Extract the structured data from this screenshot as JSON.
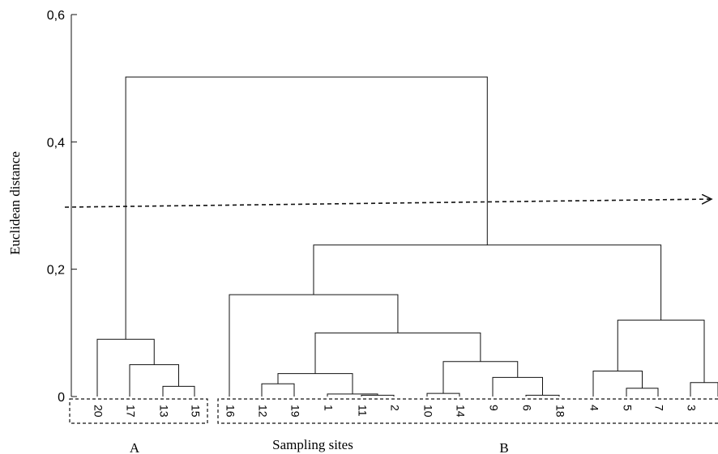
{
  "chart_data": {
    "type": "dendrogram",
    "ylabel": "Euclidean distance",
    "xlabel": "Sampling sites",
    "ylim": [
      0,
      0.6
    ],
    "yticks": [
      {
        "value": 0,
        "label": "0"
      },
      {
        "value": 0.2,
        "label": "0,2"
      },
      {
        "value": 0.4,
        "label": "0,4"
      },
      {
        "value": 0.6,
        "label": "0,6"
      }
    ],
    "leaves": [
      "20",
      "17",
      "13",
      "15",
      "16",
      "12",
      "19",
      "1",
      "11",
      "2",
      "10",
      "14",
      "9",
      "6",
      "18",
      "4",
      "5",
      "7",
      "3"
    ],
    "merges": [
      {
        "children": [
          "13",
          "15"
        ],
        "height": 0.016
      },
      {
        "children": [
          "17",
          "13-15"
        ],
        "height": 0.05
      },
      {
        "children": [
          "20",
          "17-13-15"
        ],
        "height": 0.09
      },
      {
        "children": [
          "12",
          "19"
        ],
        "height": 0.02
      },
      {
        "children": [
          "11",
          "2"
        ],
        "height": 0.002
      },
      {
        "children": [
          "1",
          "11-2"
        ],
        "height": 0.004
      },
      {
        "children": [
          "12-19",
          "1-11-2"
        ],
        "height": 0.036
      },
      {
        "children": [
          "10",
          "14"
        ],
        "height": 0.005
      },
      {
        "children": [
          "6",
          "18"
        ],
        "height": 0.002
      },
      {
        "children": [
          "9",
          "6-18"
        ],
        "height": 0.03
      },
      {
        "children": [
          "10-14",
          "9-6-18"
        ],
        "height": 0.055
      },
      {
        "children": [
          "12..2",
          "10..18"
        ],
        "height": 0.1
      },
      {
        "children": [
          "16",
          "12..18"
        ],
        "height": 0.16
      },
      {
        "children": [
          "5",
          "7"
        ],
        "height": 0.013
      },
      {
        "children": [
          "4",
          "5-7"
        ],
        "height": 0.04
      },
      {
        "children": [
          "3",
          "(beyond frame)"
        ],
        "height": 0.022
      },
      {
        "children": [
          "4-5-7",
          "3-..."
        ],
        "height": 0.12
      },
      {
        "children": [
          "16..18",
          "4..3"
        ],
        "height": 0.238
      },
      {
        "children": [
          "A",
          "B"
        ],
        "height": 0.502
      }
    ],
    "cut_line": {
      "height": 0.3,
      "style": "dashed arrow"
    },
    "groups": [
      {
        "label": "A",
        "leaves": [
          "20",
          "17",
          "13",
          "15"
        ]
      },
      {
        "label": "B",
        "leaves": [
          "16",
          "12",
          "19",
          "1",
          "11",
          "2",
          "10",
          "14",
          "9",
          "6",
          "18",
          "4",
          "5",
          "7",
          "3"
        ]
      }
    ]
  }
}
